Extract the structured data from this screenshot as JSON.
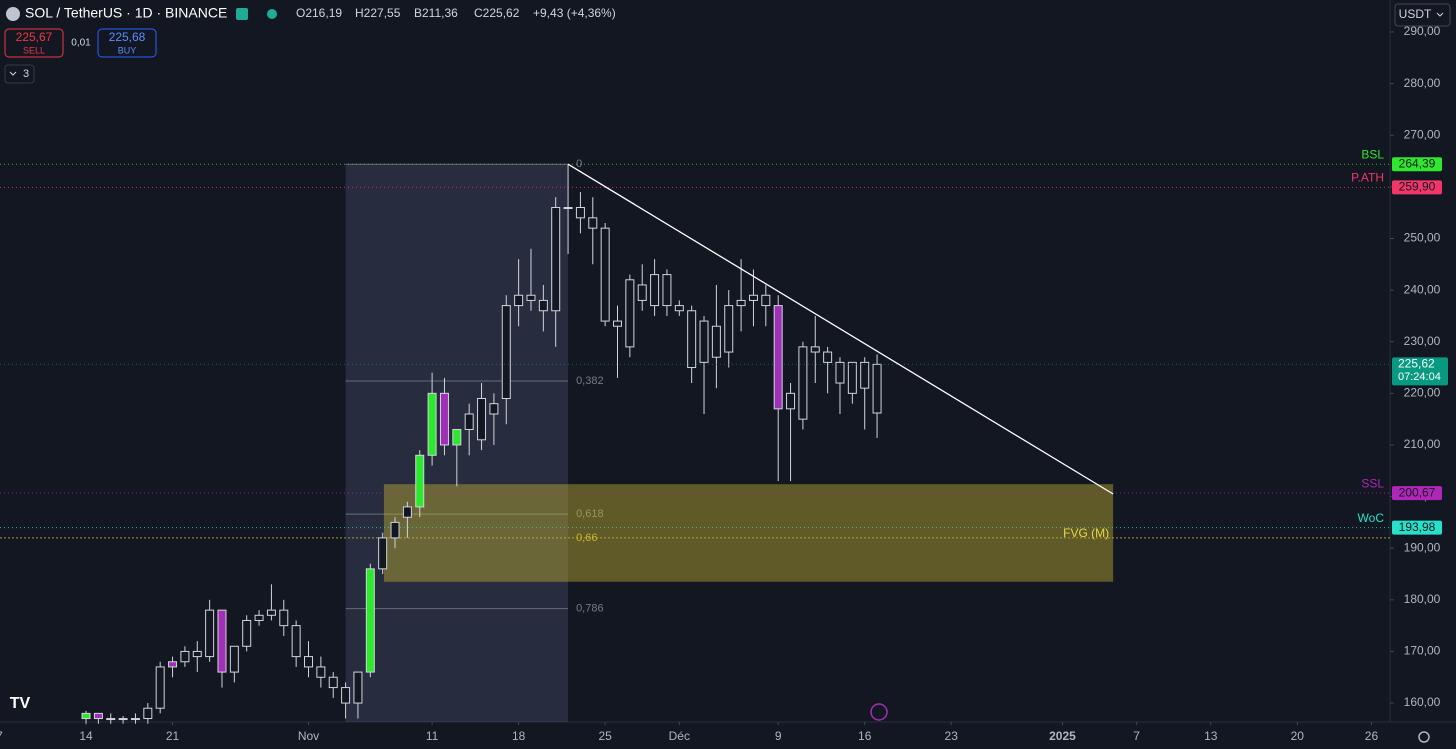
{
  "header": {
    "symbol": "SOL / TetherUS · 1D · BINANCE",
    "open": "O216,19",
    "high": "H227,55",
    "low": "B211,36",
    "close": "C225,62",
    "change": "+9,43 (+4,36%)",
    "sell_price": "225,67",
    "sell": "SELL",
    "spread": "0,01",
    "buy_price": "225,68",
    "buy": "BUY",
    "indicators": "3",
    "currency": "USDT"
  },
  "chart_data": {
    "type": "candlestick",
    "open": [
      157,
      158,
      157,
      157,
      157,
      157,
      159,
      167,
      168,
      170,
      169,
      178,
      166,
      171,
      176,
      177,
      178,
      175,
      169,
      167,
      165,
      163,
      160,
      166,
      186,
      192,
      196,
      198,
      208,
      220,
      210,
      213,
      211,
      216,
      219,
      237,
      239,
      238,
      236,
      256,
      256,
      254,
      252,
      234,
      229,
      241,
      237,
      243,
      237,
      236,
      226,
      233,
      228,
      237,
      238,
      239,
      237,
      217,
      215,
      229,
      228,
      226,
      220,
      226,
      216.19
    ],
    "high": [
      158.5,
      158,
      158,
      157.5,
      158,
      160,
      168,
      169,
      171,
      172,
      180,
      178,
      171,
      177,
      178,
      183,
      180,
      176,
      172,
      169,
      166,
      164,
      166,
      187,
      193,
      196,
      199,
      209,
      224,
      223,
      213,
      218,
      222,
      220,
      239,
      246,
      248,
      241,
      258,
      264.39,
      259,
      258,
      253,
      237,
      243,
      245,
      246,
      244,
      238,
      237,
      235,
      241,
      240,
      246,
      244,
      241,
      239,
      222,
      230,
      235,
      229,
      227,
      226,
      227,
      227.55
    ],
    "low": [
      156,
      156,
      156,
      156,
      156,
      156,
      158,
      165,
      167,
      166,
      168,
      163,
      164,
      170,
      175,
      176,
      173,
      167,
      165,
      163,
      161,
      157,
      157,
      165,
      185,
      190,
      192,
      196,
      206,
      208,
      202,
      208,
      209,
      210,
      214,
      233,
      236,
      232,
      229,
      247,
      251,
      245,
      233,
      223,
      227,
      236,
      235,
      235,
      235,
      222,
      216,
      221,
      225,
      232,
      233,
      233,
      203,
      203,
      213,
      222,
      220,
      216,
      218,
      213,
      211.36
    ],
    "close": [
      158,
      157,
      157,
      157,
      157,
      159,
      167,
      168,
      170,
      169,
      178,
      166,
      171,
      176,
      177,
      178,
      175,
      169,
      167,
      165,
      163,
      160,
      166,
      186,
      192,
      195,
      198,
      208,
      220,
      210,
      213,
      216,
      219,
      218,
      237,
      239,
      238,
      236,
      256,
      256,
      254,
      252,
      234,
      233,
      242,
      238,
      243,
      237,
      236,
      225,
      234,
      227,
      237,
      238,
      239,
      237,
      217,
      220,
      229,
      228,
      226,
      222,
      226,
      221,
      225.62
    ],
    "colors": [
      "#2ee82e",
      "#a030b8",
      "#131722",
      "#131722",
      "#131722",
      "#131722",
      "#131722",
      "#a030b8",
      "#131722",
      "#131722",
      "#131722",
      "#a030b8",
      "#131722",
      "#131722",
      "#131722",
      "#131722",
      "#131722",
      "#131722",
      "#131722",
      "#131722",
      "#131722",
      "#131722",
      "#131722",
      "#2ee82e",
      "#131722",
      "#131722",
      "#131722",
      "#2ee82e",
      "#2ee82e",
      "#a030b8",
      "#2ee82e",
      "#131722",
      "#131722",
      "#131722",
      "#131722",
      "#131722",
      "#131722",
      "#131722",
      "#131722",
      "#131722",
      "#131722",
      "#131722",
      "#131722",
      "#131722",
      "#131722",
      "#131722",
      "#131722",
      "#131722",
      "#131722",
      "#131722",
      "#131722",
      "#131722",
      "#131722",
      "#131722",
      "#131722",
      "#131722",
      "#a030b8",
      "#131722",
      "#131722",
      "#131722",
      "#131722",
      "#131722",
      "#131722",
      "#131722",
      "#131722"
    ],
    "xlim": [
      -6.96,
      105.5
    ],
    "xticks": [
      {
        "value": -7,
        "label": "7"
      },
      {
        "value": 0,
        "label": "14"
      },
      {
        "value": 7,
        "label": "21"
      },
      {
        "value": 18,
        "label": "Nov"
      },
      {
        "value": 28,
        "label": "11"
      },
      {
        "value": 35,
        "label": "18"
      },
      {
        "value": 42,
        "label": "25"
      },
      {
        "value": 48,
        "label": "Déc"
      },
      {
        "value": 56,
        "label": "9"
      },
      {
        "value": 63,
        "label": "16"
      },
      {
        "value": 70,
        "label": "23"
      },
      {
        "value": 79,
        "label": "2025"
      },
      {
        "value": 85,
        "label": "7"
      },
      {
        "value": 91,
        "label": "13"
      },
      {
        "value": 98,
        "label": "20"
      },
      {
        "value": 104,
        "label": "26"
      }
    ],
    "ylim": [
      156.33,
      296.2
    ],
    "yticks": [
      {
        "value": 160,
        "label": "160,00"
      },
      {
        "value": 170,
        "label": "170,00"
      },
      {
        "value": 180,
        "label": "180,00"
      },
      {
        "value": 190,
        "label": "190,00"
      },
      {
        "value": 200,
        "label": "200,00"
      },
      {
        "value": 210,
        "label": "210,00"
      },
      {
        "value": 220,
        "label": "220,00"
      },
      {
        "value": 230,
        "label": "230,00"
      },
      {
        "value": 240,
        "label": "240,00"
      },
      {
        "value": 250,
        "label": "250,00"
      },
      {
        "value": 260,
        "label": "260,00"
      },
      {
        "value": 270,
        "label": "270,00"
      },
      {
        "value": 280,
        "label": "280,00"
      },
      {
        "value": 290,
        "label": "290,00"
      }
    ],
    "fib": {
      "x": [
        21,
        39
      ],
      "levels": [
        {
          "label": "0",
          "value": 264.39
        },
        {
          "label": "0,382",
          "value": 222.4
        },
        {
          "label": "0,618",
          "value": 196.6
        },
        {
          "label": "0,66",
          "value": 192.0,
          "color": "#c8b830"
        },
        {
          "label": "0,786",
          "value": 178.3
        }
      ]
    },
    "fvg": {
      "label": "FVG (M)",
      "x": [
        24.1,
        83.1
      ],
      "y": [
        183.5,
        202.4
      ]
    },
    "trendline": {
      "x": [
        39,
        83.1
      ],
      "y": [
        264.39,
        200.5
      ]
    },
    "levels": [
      {
        "name": "BSL",
        "value": 264.39,
        "label": "264,39",
        "color": "#2ee82e"
      },
      {
        "name": "P.ATH",
        "value": 259.9,
        "label": "259,90",
        "color": "#f23668"
      },
      {
        "name": "SSL",
        "value": 200.67,
        "label": "200,67",
        "color": "#b026b8"
      },
      {
        "name": "WoC",
        "value": 193.98,
        "label": "193,98",
        "color": "#26e0c8"
      }
    ],
    "last_price": {
      "value": 225.62,
      "label": "225,62",
      "countdown": "07:24:04",
      "color": "#089981"
    }
  }
}
